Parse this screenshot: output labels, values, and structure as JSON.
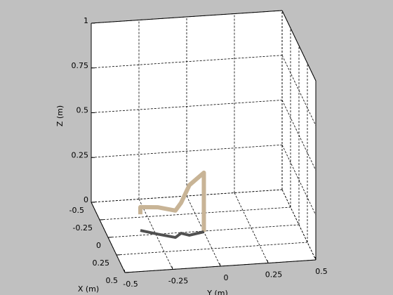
{
  "chart_data": {
    "type": "line3d",
    "xlabel": "X (m)",
    "ylabel": "Y (m)",
    "zlabel": "Z (m)",
    "xlim": [
      -0.5,
      0.5
    ],
    "xticks": [
      -0.5,
      -0.25,
      0,
      0.25,
      0.5
    ],
    "ylim": [
      -0.5,
      0.5
    ],
    "yticks": [
      -0.5,
      -0.25,
      0,
      0.25,
      0.5
    ],
    "zlim": [
      0,
      1
    ],
    "zticks": [
      0,
      0.25,
      0.5,
      0.75,
      1
    ],
    "grid": true,
    "series": [
      {
        "color": "#c8b496",
        "x": [
          -0.067,
          -0.067,
          0.0,
          0.062,
          0.009,
          0.045,
          0.01,
          0.01
        ],
        "y": [
          -0.319,
          -0.319,
          -0.24,
          -0.158,
          -0.119,
          -0.082,
          0.0,
          0.0
        ],
        "z": [
          0.09,
          0.13,
          0.15,
          0.15,
          0.17,
          0.28,
          0.33,
          0.0
        ]
      },
      {
        "color": "#505050",
        "x": [
          -0.067,
          0.0,
          0.062,
          0.009,
          0.045,
          0.01
        ],
        "y": [
          -0.319,
          -0.24,
          -0.158,
          -0.119,
          -0.082,
          0.0
        ],
        "z": [
          0,
          0,
          0,
          0,
          0,
          0
        ]
      }
    ]
  }
}
